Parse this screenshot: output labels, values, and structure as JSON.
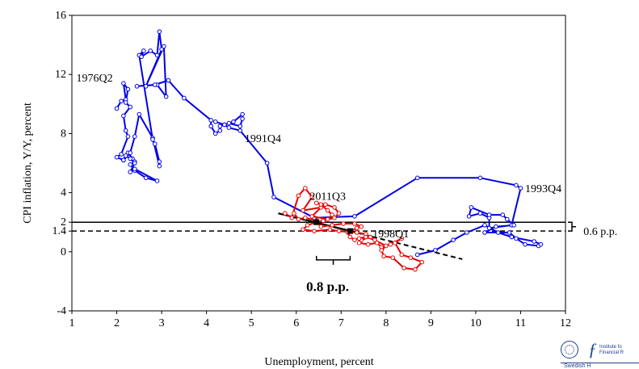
{
  "chart_data": {
    "type": "line",
    "xlabel": "Unemployment, percent",
    "ylabel": "CPI inflation, Y/Y, percent",
    "xlim": [
      1,
      12
    ],
    "ylim": [
      -4,
      16
    ],
    "xticks": [
      "1",
      "2",
      "3",
      "4",
      "5",
      "6",
      "7",
      "8",
      "9",
      "10",
      "11",
      "12"
    ],
    "yticks": [
      "-4",
      "0",
      "1.4",
      "2",
      "4",
      "8",
      "12",
      "16"
    ],
    "series": [
      {
        "color": "#0000e6",
        "points": [
          [
            2.0,
            9.7
          ],
          [
            2.1,
            10.2
          ],
          [
            2.2,
            10.3
          ],
          [
            2.15,
            11.4
          ],
          [
            2.25,
            11.0
          ],
          [
            2.2,
            10.1
          ],
          [
            2.3,
            9.8
          ],
          [
            2.15,
            9.2
          ],
          [
            2.2,
            8.2
          ],
          [
            2.25,
            7.8
          ],
          [
            2.1,
            6.6
          ],
          [
            2.0,
            6.4
          ],
          [
            2.15,
            6.2
          ],
          [
            2.25,
            6.7
          ],
          [
            2.35,
            6.3
          ],
          [
            2.4,
            6.1
          ],
          [
            2.3,
            5.9
          ],
          [
            2.4,
            5.5
          ],
          [
            2.65,
            5.0
          ],
          [
            2.9,
            4.8
          ],
          [
            2.4,
            5.6
          ],
          [
            2.3,
            5.4
          ],
          [
            2.4,
            6.0
          ],
          [
            2.3,
            6.3
          ],
          [
            2.2,
            6.5
          ],
          [
            2.15,
            6.2
          ],
          [
            2.3,
            6.7
          ],
          [
            2.4,
            7.8
          ],
          [
            2.5,
            9.3
          ],
          [
            2.8,
            7.7
          ],
          [
            2.95,
            5.8
          ],
          [
            2.85,
            7.3
          ],
          [
            2.95,
            6.1
          ],
          [
            2.8,
            7.6
          ],
          [
            2.5,
            13.3
          ],
          [
            2.6,
            13.6
          ],
          [
            2.55,
            13.2
          ],
          [
            2.75,
            13.6
          ],
          [
            2.9,
            13.3
          ],
          [
            2.95,
            14.9
          ],
          [
            3.0,
            13.7
          ],
          [
            2.65,
            11.2
          ],
          [
            3.05,
            13.9
          ],
          [
            3.1,
            10.5
          ],
          [
            2.9,
            11.3
          ],
          [
            2.45,
            11.2
          ],
          [
            2.85,
            11.3
          ],
          [
            3.15,
            11.6
          ],
          [
            3.5,
            10.4
          ],
          [
            4.1,
            8.9
          ],
          [
            4.1,
            8.5
          ],
          [
            4.2,
            8.0
          ],
          [
            4.3,
            8.2
          ],
          [
            4.3,
            8.5
          ],
          [
            4.5,
            8.7
          ],
          [
            4.75,
            8.5
          ],
          [
            4.8,
            9.0
          ],
          [
            4.8,
            9.3
          ],
          [
            4.6,
            8.8
          ],
          [
            4.4,
            8.6
          ],
          [
            4.2,
            8.8
          ],
          [
            4.4,
            8.6
          ],
          [
            4.5,
            8.4
          ],
          [
            4.75,
            8.2
          ],
          [
            5.35,
            6.0
          ],
          [
            5.5,
            3.7
          ],
          [
            6.4,
            2.3
          ],
          [
            7.3,
            2.4
          ],
          [
            8.7,
            5.0
          ],
          [
            10.1,
            5.0
          ],
          [
            10.9,
            4.5
          ],
          [
            11.0,
            4.3
          ],
          [
            10.8,
            1.8
          ],
          [
            10.3,
            1.6
          ],
          [
            10.3,
            2.3
          ],
          [
            10.1,
            2.6
          ],
          [
            9.85,
            2.4
          ],
          [
            9.9,
            3.0
          ],
          [
            10.3,
            2.5
          ],
          [
            10.6,
            2.5
          ],
          [
            10.7,
            2.2
          ],
          [
            10.85,
            1.8
          ],
          [
            10.45,
            1.7
          ],
          [
            10.2,
            1.3
          ],
          [
            10.75,
            1.3
          ],
          [
            10.9,
            0.9
          ],
          [
            11.1,
            0.5
          ],
          [
            11.4,
            0.4
          ],
          [
            11.45,
            0.5
          ],
          [
            11.3,
            0.7
          ],
          [
            10.8,
            1.0
          ],
          [
            10.5,
            1.3
          ],
          [
            10.2,
            1.8
          ],
          [
            9.8,
            1.3
          ],
          [
            9.5,
            0.8
          ],
          [
            9.1,
            0.1
          ],
          [
            8.7,
            -0.2
          ]
        ]
      },
      {
        "color": "#e60000",
        "points": [
          [
            5.75,
            2.6
          ],
          [
            5.9,
            2.3
          ],
          [
            6.05,
            3.8
          ],
          [
            6.2,
            4.3
          ],
          [
            6.35,
            3.7
          ],
          [
            6.15,
            2.8
          ],
          [
            6.55,
            3.0
          ],
          [
            6.35,
            2.4
          ],
          [
            6.7,
            2.2
          ],
          [
            6.8,
            2.5
          ],
          [
            6.7,
            2.8
          ],
          [
            6.55,
            3.2
          ],
          [
            6.45,
            3.3
          ],
          [
            6.65,
            3.2
          ],
          [
            6.85,
            3.0
          ],
          [
            6.95,
            2.6
          ],
          [
            6.85,
            2.3
          ],
          [
            6.6,
            2.1
          ],
          [
            6.45,
            2.0
          ],
          [
            6.25,
            1.8
          ],
          [
            6.15,
            1.5
          ],
          [
            6.4,
            1.4
          ],
          [
            6.75,
            1.5
          ],
          [
            6.95,
            1.4
          ],
          [
            7.35,
            1.3
          ],
          [
            7.55,
            1.2
          ],
          [
            7.65,
            1.0
          ],
          [
            7.45,
            0.8
          ],
          [
            7.4,
            0.6
          ],
          [
            7.6,
            0.5
          ],
          [
            7.8,
            0.6
          ],
          [
            7.9,
            0.3
          ],
          [
            8.1,
            0.5
          ],
          [
            8.35,
            0.9
          ],
          [
            8.2,
            0.6
          ],
          [
            8.35,
            -0.2
          ],
          [
            8.55,
            -0.4
          ],
          [
            8.8,
            -0.7
          ],
          [
            8.65,
            -1.2
          ],
          [
            8.4,
            -1.1
          ],
          [
            8.15,
            -0.4
          ],
          [
            7.95,
            -0.3
          ],
          [
            7.9,
            0.1
          ],
          [
            8.0,
            0.4
          ],
          [
            7.75,
            0.8
          ],
          [
            7.55,
            1.0
          ],
          [
            7.4,
            0.9
          ],
          [
            7.3,
            0.8
          ],
          [
            7.2,
            1.0
          ],
          [
            7.15,
            1.3
          ],
          [
            7.35,
            1.6
          ],
          [
            7.45,
            1.7
          ],
          [
            7.3,
            1.9
          ],
          [
            7.05,
            1.9
          ],
          [
            6.8,
            1.8
          ],
          [
            6.55,
            1.7
          ],
          [
            6.45,
            2.1
          ],
          [
            6.2,
            2.3
          ],
          [
            6.05,
            2.2
          ],
          [
            5.95,
            2.6
          ]
        ]
      }
    ],
    "hlines": [
      {
        "y": 2.0,
        "style": "solid"
      },
      {
        "y": 1.4,
        "style": "dashed"
      }
    ],
    "trendlines": [
      {
        "style": "dashed",
        "x": [
          5.6,
          9.7
        ],
        "y": [
          2.6,
          -0.5
        ]
      },
      {
        "style": "solid",
        "x": [
          5.6,
          7.5
        ],
        "y": [
          2.6,
          1.2
        ]
      }
    ],
    "markers": [
      {
        "x": 6.45,
        "y": 2.0
      },
      {
        "x": 7.2,
        "y": 1.4
      }
    ],
    "annotations": [
      {
        "text": "1976Q2",
        "x": 1.1,
        "y": 11.8
      },
      {
        "text": "1991Q4",
        "x": 4.85,
        "y": 7.7
      },
      {
        "text": "2011Q3",
        "x": 6.3,
        "y": 3.8
      },
      {
        "text": "1998Q1",
        "x": 7.7,
        "y": 1.25
      },
      {
        "text": "1993Q4",
        "x": 11.1,
        "y": 4.3
      },
      {
        "text": "0.8 p.p.",
        "x": 6.7,
        "y": -2.4,
        "bold": true
      },
      {
        "text": "0.6 p.p.",
        "x": 12.4,
        "y": 1.4
      }
    ],
    "grid": false
  },
  "logo": {
    "text_line1": "Institute fo",
    "text_line2": "Financial R",
    "subtext": "Swedish H"
  }
}
